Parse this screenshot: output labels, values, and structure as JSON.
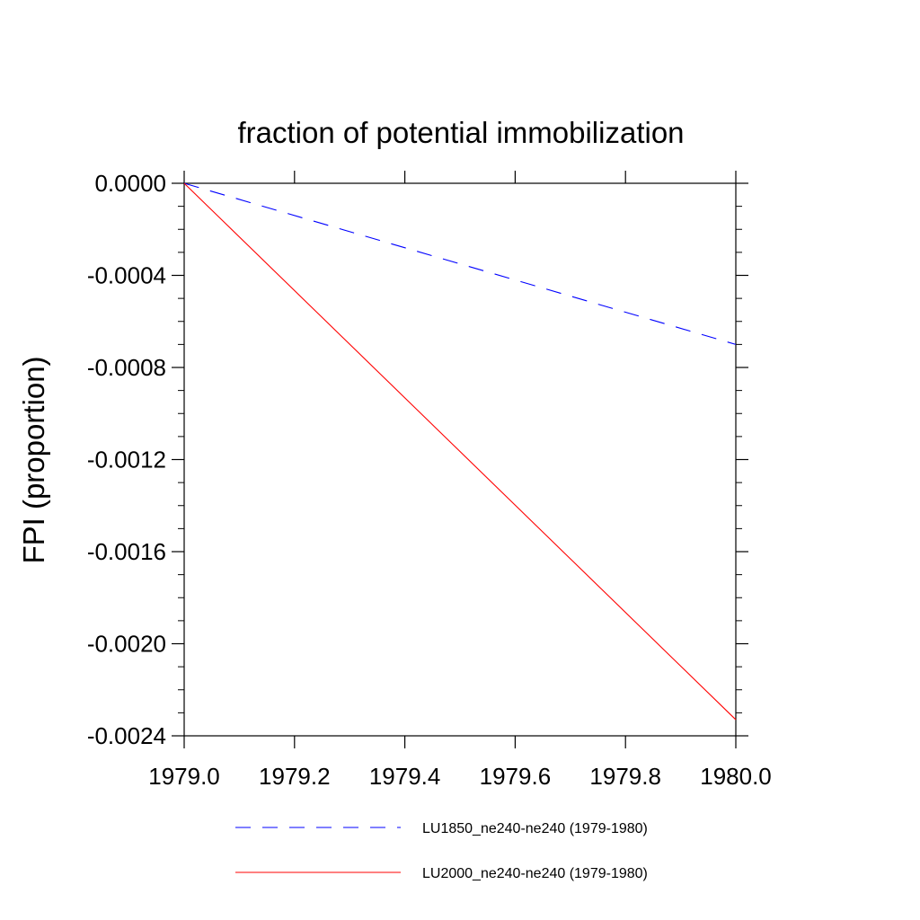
{
  "chart_data": {
    "type": "line",
    "title": "fraction of potential immobilization",
    "ylabel": "FPI  (proportion)",
    "xlabel": "",
    "xlim": [
      1979.0,
      1980.0
    ],
    "ylim": [
      -0.0024,
      0.0
    ],
    "x_ticks": [
      1979.0,
      1979.2,
      1979.4,
      1979.6,
      1979.8,
      1980.0
    ],
    "x_tick_labels": [
      "1979.0",
      "1979.2",
      "1979.4",
      "1979.6",
      "1979.8",
      "1980.0"
    ],
    "y_ticks": [
      0.0,
      -0.0004,
      -0.0008,
      -0.0012,
      -0.0016,
      -0.002,
      -0.0024
    ],
    "y_tick_labels": [
      "0.0000",
      "-0.0004",
      "-0.0008",
      "-0.0012",
      "-0.0016",
      "-0.0020",
      "-0.0024"
    ],
    "grid": false,
    "legend_position": "bottom",
    "series": [
      {
        "name": "LU1850_ne240-ne240 (1979-1980)",
        "color": "#0000ff",
        "style": "dashed",
        "x": [
          1979.0,
          1980.0
        ],
        "y": [
          0.0,
          -0.0007
        ]
      },
      {
        "name": "LU2000_ne240-ne240 (1979-1980)",
        "color": "#ff0000",
        "style": "solid",
        "x": [
          1979.0,
          1980.0
        ],
        "y": [
          0.0,
          -0.00233
        ]
      }
    ]
  }
}
